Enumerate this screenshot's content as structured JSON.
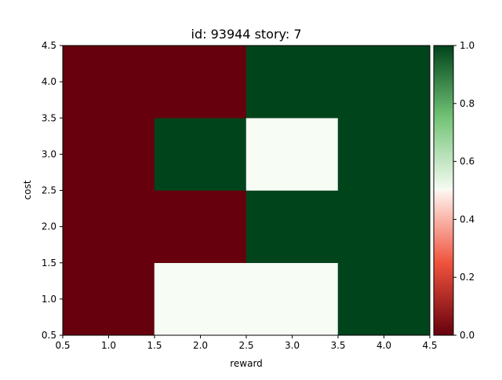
{
  "chart_data": {
    "type": "heatmap",
    "title": "id: 93944 story: 7",
    "xlabel": "reward",
    "ylabel": "cost",
    "xlim": [
      0.5,
      4.5
    ],
    "ylim": [
      0.5,
      4.5
    ],
    "x_ticks": [
      0.5,
      1.0,
      1.5,
      2.0,
      2.5,
      3.0,
      3.5,
      4.0,
      4.5
    ],
    "x_tick_labels": [
      "0.5",
      "1.0",
      "1.5",
      "2.0",
      "2.5",
      "3.0",
      "3.5",
      "4.0",
      "4.5"
    ],
    "y_ticks": [
      0.5,
      1.0,
      1.5,
      2.0,
      2.5,
      3.0,
      3.5,
      4.0,
      4.5
    ],
    "y_tick_labels": [
      "0.5",
      "1.0",
      "1.5",
      "2.0",
      "2.5",
      "3.0",
      "3.5",
      "4.0",
      "4.5"
    ],
    "x_centers": [
      1,
      2,
      3,
      4
    ],
    "y_centers": [
      1,
      2,
      3,
      4
    ],
    "values_rows_by_y": [
      [
        0.0,
        0.5,
        0.5,
        1.0
      ],
      [
        0.0,
        0.0,
        1.0,
        1.0
      ],
      [
        0.0,
        1.0,
        0.5,
        1.0
      ],
      [
        0.0,
        0.0,
        1.0,
        1.0
      ]
    ],
    "colormap": "RdYlGn-like (red to white to green)",
    "colorbar": {
      "range": [
        0.0,
        1.0
      ],
      "ticks": [
        0.0,
        0.2,
        0.4,
        0.6,
        0.8,
        1.0
      ],
      "tick_labels": [
        "0.0",
        "0.2",
        "0.4",
        "0.6",
        "0.8",
        "1.0"
      ],
      "stops": [
        {
          "value": 0.0,
          "color": "#67000d"
        },
        {
          "value": 0.25,
          "color": "#f0533d"
        },
        {
          "value": 0.5,
          "color": "#fff5f0"
        },
        {
          "value": 0.5,
          "color": "#f7fcf5"
        },
        {
          "value": 0.75,
          "color": "#73c476"
        },
        {
          "value": 1.0,
          "color": "#00441b"
        }
      ]
    }
  }
}
